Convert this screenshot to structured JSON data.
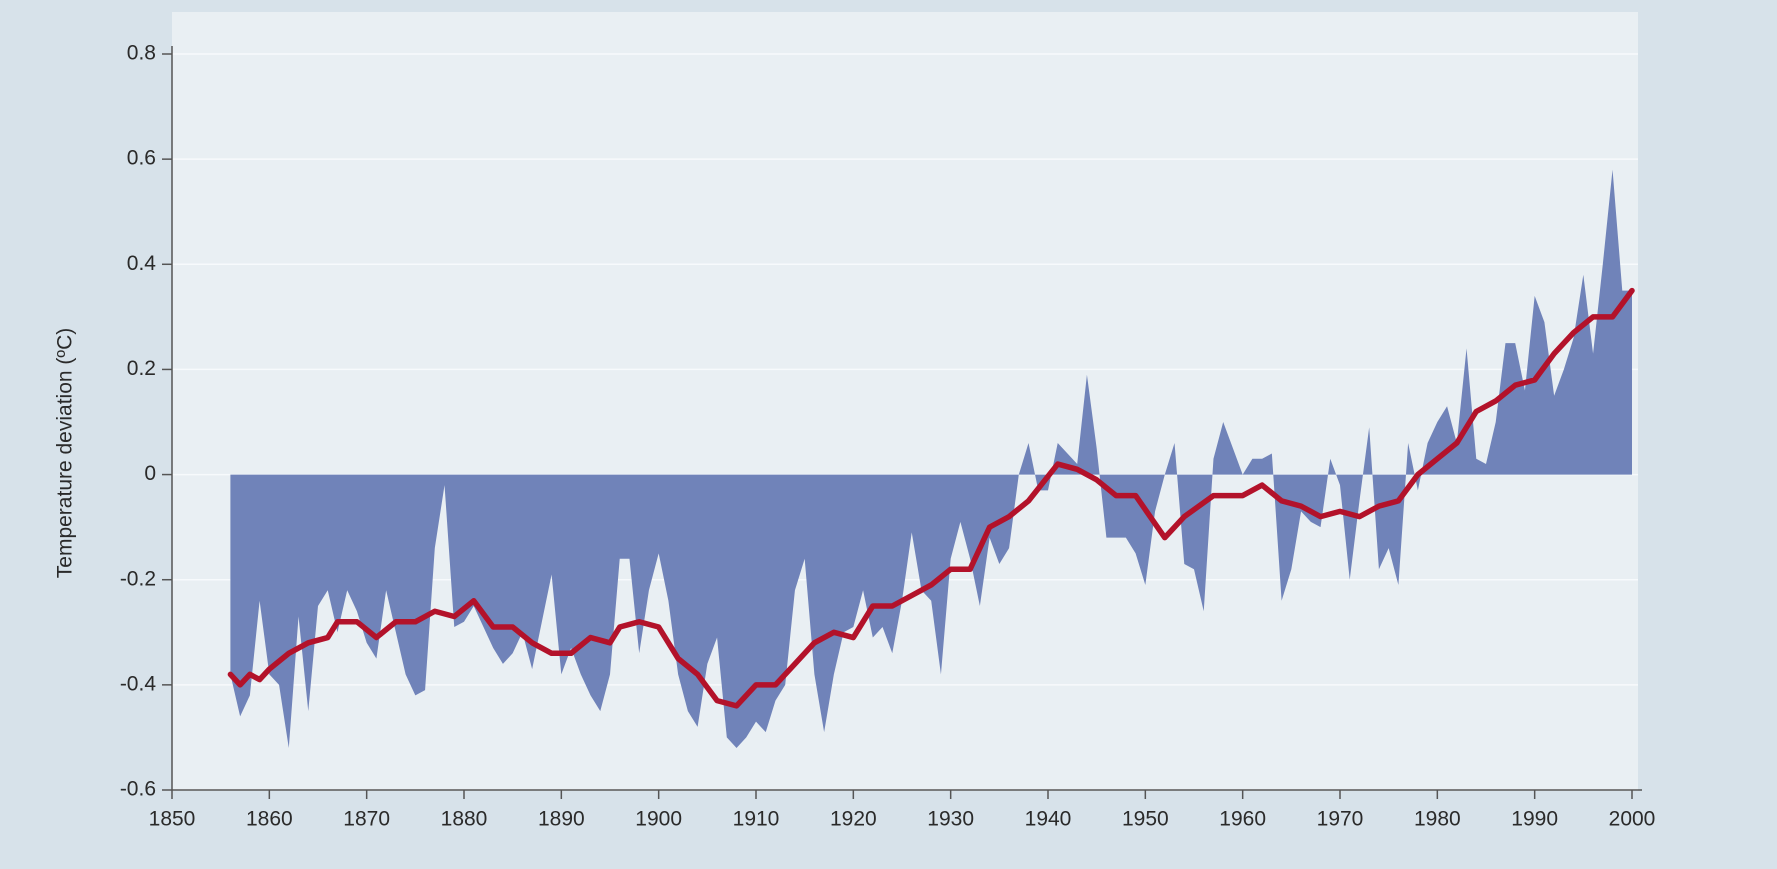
{
  "chart_data": {
    "type": "area",
    "ylabel": "Temperature deviation (ºC)",
    "xlim": [
      1850,
      2000
    ],
    "xticks": [
      1850,
      1860,
      1870,
      1880,
      1890,
      1900,
      1910,
      1920,
      1930,
      1940,
      1950,
      1960,
      1970,
      1980,
      1990,
      2000
    ],
    "ylim": [
      -0.6,
      0.8
    ],
    "yticks": [
      -0.6,
      -0.4,
      -0.2,
      0,
      0.2,
      0.4,
      0.6,
      0.8
    ],
    "grid": true,
    "series": [
      {
        "type": "area",
        "color": "#7083b9",
        "x": [
          1856,
          1857,
          1858,
          1859,
          1860,
          1861,
          1862,
          1863,
          1864,
          1865,
          1866,
          1867,
          1868,
          1869,
          1870,
          1871,
          1872,
          1873,
          1874,
          1875,
          1876,
          1877,
          1878,
          1879,
          1880,
          1881,
          1882,
          1883,
          1884,
          1885,
          1886,
          1887,
          1888,
          1889,
          1890,
          1891,
          1892,
          1893,
          1894,
          1895,
          1896,
          1897,
          1898,
          1899,
          1900,
          1901,
          1902,
          1903,
          1904,
          1905,
          1906,
          1907,
          1908,
          1909,
          1910,
          1911,
          1912,
          1913,
          1914,
          1915,
          1916,
          1917,
          1918,
          1919,
          1920,
          1921,
          1922,
          1923,
          1924,
          1925,
          1926,
          1927,
          1928,
          1929,
          1930,
          1931,
          1932,
          1933,
          1934,
          1935,
          1936,
          1937,
          1938,
          1939,
          1940,
          1941,
          1942,
          1943,
          1944,
          1945,
          1946,
          1947,
          1948,
          1949,
          1950,
          1951,
          1952,
          1953,
          1954,
          1955,
          1956,
          1957,
          1958,
          1959,
          1960,
          1961,
          1962,
          1963,
          1964,
          1965,
          1966,
          1967,
          1968,
          1969,
          1970,
          1971,
          1972,
          1973,
          1974,
          1975,
          1976,
          1977,
          1978,
          1979,
          1980,
          1981,
          1982,
          1983,
          1984,
          1985,
          1986,
          1987,
          1988,
          1989,
          1990,
          1991,
          1992,
          1993,
          1994,
          1995,
          1996,
          1997,
          1998,
          1999,
          2000
        ],
        "values": [
          -0.38,
          -0.46,
          -0.42,
          -0.24,
          -0.38,
          -0.4,
          -0.52,
          -0.27,
          -0.45,
          -0.25,
          -0.22,
          -0.3,
          -0.22,
          -0.26,
          -0.32,
          -0.35,
          -0.22,
          -0.3,
          -0.38,
          -0.42,
          -0.41,
          -0.14,
          -0.02,
          -0.29,
          -0.28,
          -0.25,
          -0.29,
          -0.33,
          -0.36,
          -0.34,
          -0.3,
          -0.37,
          -0.28,
          -0.19,
          -0.38,
          -0.33,
          -0.38,
          -0.42,
          -0.45,
          -0.38,
          -0.16,
          -0.16,
          -0.34,
          -0.22,
          -0.15,
          -0.24,
          -0.38,
          -0.45,
          -0.48,
          -0.36,
          -0.31,
          -0.5,
          -0.52,
          -0.5,
          -0.47,
          -0.49,
          -0.43,
          -0.4,
          -0.22,
          -0.16,
          -0.38,
          -0.49,
          -0.38,
          -0.3,
          -0.29,
          -0.22,
          -0.31,
          -0.29,
          -0.34,
          -0.24,
          -0.11,
          -0.22,
          -0.24,
          -0.38,
          -0.16,
          -0.09,
          -0.16,
          -0.25,
          -0.12,
          -0.17,
          -0.14,
          0,
          0.06,
          -0.03,
          -0.03,
          0.06,
          0.04,
          0.02,
          0.19,
          0.05,
          -0.12,
          -0.12,
          -0.12,
          -0.15,
          -0.21,
          -0.07,
          0,
          0.06,
          -0.17,
          -0.18,
          -0.26,
          0.03,
          0.1,
          0.05,
          0,
          0.03,
          0.03,
          0.04,
          -0.24,
          -0.18,
          -0.07,
          -0.09,
          -0.1,
          0.03,
          -0.02,
          -0.2,
          -0.05,
          0.09,
          -0.18,
          -0.14,
          -0.21,
          0.06,
          -0.03,
          0.06,
          0.1,
          0.13,
          0.06,
          0.24,
          0.03,
          0.02,
          0.1,
          0.25,
          0.25,
          0.16,
          0.34,
          0.29,
          0.15,
          0.2,
          0.26,
          0.38,
          0.23,
          0.4,
          0.58,
          0.35,
          0.35
        ]
      },
      {
        "type": "line",
        "color": "#b3122a",
        "x": [
          1856,
          1857,
          1858,
          1859,
          1860,
          1862,
          1864,
          1866,
          1867,
          1869,
          1871,
          1873,
          1875,
          1877,
          1879,
          1881,
          1883,
          1885,
          1887,
          1889,
          1891,
          1893,
          1895,
          1896,
          1898,
          1900,
          1902,
          1904,
          1906,
          1908,
          1910,
          1912,
          1914,
          1916,
          1918,
          1920,
          1922,
          1924,
          1926,
          1928,
          1930,
          1932,
          1934,
          1936,
          1938,
          1941,
          1943,
          1945,
          1947,
          1949,
          1952,
          1954,
          1957,
          1960,
          1962,
          1964,
          1966,
          1968,
          1970,
          1972,
          1974,
          1976,
          1978,
          1980,
          1982,
          1984,
          1986,
          1988,
          1990,
          1992,
          1994,
          1996,
          1998,
          2000
        ],
        "values": [
          -0.38,
          -0.4,
          -0.38,
          -0.39,
          -0.37,
          -0.34,
          -0.32,
          -0.31,
          -0.28,
          -0.28,
          -0.31,
          -0.28,
          -0.28,
          -0.26,
          -0.27,
          -0.24,
          -0.29,
          -0.29,
          -0.32,
          -0.34,
          -0.34,
          -0.31,
          -0.32,
          -0.29,
          -0.28,
          -0.29,
          -0.35,
          -0.38,
          -0.43,
          -0.44,
          -0.4,
          -0.4,
          -0.36,
          -0.32,
          -0.3,
          -0.31,
          -0.25,
          -0.25,
          -0.23,
          -0.21,
          -0.18,
          -0.18,
          -0.1,
          -0.08,
          -0.05,
          0.02,
          0.01,
          -0.01,
          -0.04,
          -0.04,
          -0.12,
          -0.08,
          -0.04,
          -0.04,
          -0.02,
          -0.05,
          -0.06,
          -0.08,
          -0.07,
          -0.08,
          -0.06,
          -0.05,
          0,
          0.03,
          0.06,
          0.12,
          0.14,
          0.17,
          0.18,
          0.23,
          0.27,
          0.3,
          0.3,
          0.35
        ]
      }
    ]
  }
}
